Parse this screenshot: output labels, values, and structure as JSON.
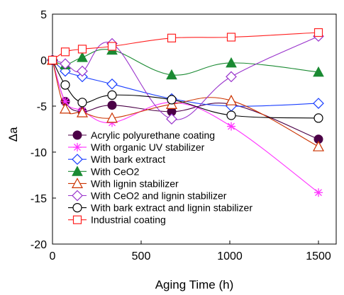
{
  "chart_data": {
    "type": "line",
    "xlabel": "Aging Time (h)",
    "ylabel": "Δa",
    "xlim": [
      0,
      1600
    ],
    "ylim": [
      -20,
      5
    ],
    "xticks": [
      0,
      500,
      1000,
      1500
    ],
    "yticks": [
      5,
      0,
      -5,
      -10,
      -15,
      -20
    ],
    "xtick_labels": [
      "0",
      "500",
      "1000",
      "1500"
    ],
    "ytick_labels": [
      "5",
      "0",
      "-5",
      "-10",
      "-15",
      "-20"
    ],
    "grid": false,
    "legend_position": "bottom-left",
    "series": [
      {
        "name": "Acrylic polyurethane coating",
        "color": "#4b0046",
        "marker": "filled-circle",
        "x": [
          0,
          72,
          168,
          336,
          672,
          1008,
          1500
        ],
        "y": [
          0,
          -4.5,
          -5.6,
          -4.9,
          -5.6,
          -4.8,
          -8.6
        ]
      },
      {
        "name": "With organic UV stabilizer",
        "color": "#ff33ff",
        "marker": "asterisk",
        "x": [
          0,
          72,
          168,
          336,
          672,
          1008,
          1500
        ],
        "y": [
          0,
          -4.5,
          -5.5,
          -6.8,
          -4.6,
          -7.2,
          -14.4
        ]
      },
      {
        "name": "With bark extract",
        "color": "#1a3fff",
        "marker": "open-diamond",
        "x": [
          0,
          72,
          168,
          336,
          672,
          1008,
          1500
        ],
        "y": [
          0,
          -1.2,
          -1.8,
          -2.6,
          -4.2,
          -5.0,
          -4.7
        ]
      },
      {
        "name": "With CeO2",
        "color": "#1a8a32",
        "marker": "filled-triangle",
        "x": [
          0,
          72,
          168,
          336,
          672,
          1008,
          1500
        ],
        "y": [
          0,
          -0.5,
          0.3,
          1.1,
          -1.6,
          -0.3,
          -1.3
        ]
      },
      {
        "name": "With lignin stabilizer",
        "color": "#cc3300",
        "marker": "open-triangle",
        "x": [
          0,
          72,
          168,
          336,
          672,
          1008,
          1500
        ],
        "y": [
          0,
          -5.3,
          -5.7,
          -6.3,
          -4.8,
          -4.4,
          -9.4
        ]
      },
      {
        "name": "With CeO2 and lignin stabilizer",
        "color": "#9933cc",
        "marker": "open-diamond",
        "x": [
          0,
          72,
          168,
          336,
          672,
          1008,
          1500
        ],
        "y": [
          0,
          -0.4,
          -1.2,
          1.8,
          -6.4,
          -1.8,
          2.6
        ]
      },
      {
        "name": "With bark extract and lignin stabilizer",
        "color": "#000000",
        "marker": "open-circle",
        "x": [
          0,
          72,
          168,
          336,
          672,
          1008,
          1500
        ],
        "y": [
          0,
          -2.7,
          -4.6,
          -3.8,
          -4.3,
          -6.0,
          -6.3
        ]
      },
      {
        "name": "Industrial coating",
        "color": "#ff2020",
        "marker": "open-square",
        "x": [
          0,
          72,
          168,
          336,
          672,
          1008,
          1500
        ],
        "y": [
          0,
          0.9,
          1.2,
          1.5,
          2.4,
          2.5,
          3.0
        ]
      }
    ]
  }
}
